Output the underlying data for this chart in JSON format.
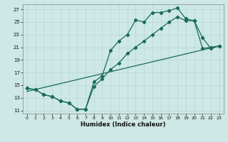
{
  "xlabel": "Humidex (Indice chaleur)",
  "xlim": [
    -0.5,
    23.5
  ],
  "ylim": [
    10.5,
    27.8
  ],
  "xticks": [
    0,
    1,
    2,
    3,
    4,
    5,
    6,
    7,
    8,
    9,
    10,
    11,
    12,
    13,
    14,
    15,
    16,
    17,
    18,
    19,
    20,
    21,
    22,
    23
  ],
  "yticks": [
    11,
    13,
    15,
    17,
    19,
    21,
    23,
    25,
    27
  ],
  "bg_color": "#cde8e5",
  "grid_color": "#b8d8d5",
  "line_color": "#1a6b5a",
  "line1_x": [
    0,
    1,
    2,
    3,
    4,
    5,
    6,
    7,
    8,
    9,
    10,
    11,
    12,
    13,
    14,
    15,
    16,
    17,
    18,
    19,
    20,
    21,
    22,
    23
  ],
  "line1_y": [
    14.5,
    14.3,
    13.5,
    13.2,
    12.5,
    12.2,
    11.2,
    11.2,
    15.5,
    16.5,
    20.5,
    22.0,
    23.0,
    25.3,
    25.0,
    26.5,
    26.5,
    26.8,
    27.2,
    25.5,
    25.2,
    22.5,
    20.8,
    21.2
  ],
  "line2_x": [
    0,
    1,
    2,
    3,
    4,
    5,
    6,
    7,
    8,
    9,
    10,
    11,
    12,
    13,
    14,
    15,
    16,
    17,
    18,
    19,
    20,
    21,
    22,
    23
  ],
  "line2_y": [
    14.5,
    14.3,
    13.5,
    13.2,
    12.5,
    12.2,
    11.2,
    11.2,
    14.8,
    16.0,
    17.5,
    18.5,
    20.0,
    21.0,
    22.0,
    23.0,
    24.0,
    25.0,
    25.8,
    25.2,
    25.2,
    20.8,
    21.0,
    21.2
  ],
  "line3_x": [
    0,
    23
  ],
  "line3_y": [
    14.0,
    21.2
  ],
  "marker": "D",
  "markersize": 2.2,
  "linewidth": 0.9
}
